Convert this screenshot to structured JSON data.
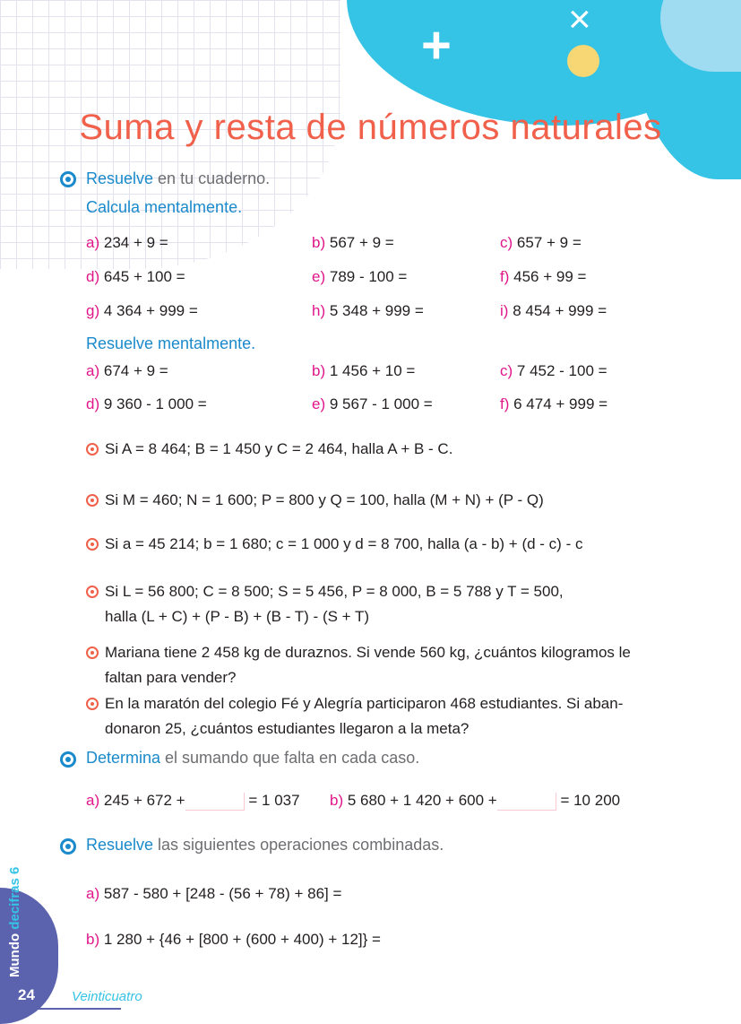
{
  "title": "Suma y resta de números naturales",
  "section1": {
    "verb": "Resuelve",
    "rest": " en tu cuaderno.",
    "calcula": {
      "heading": "Calcula mentalmente.",
      "items": [
        {
          "label": "a)",
          "expr": "234 + 9 ="
        },
        {
          "label": "b)",
          "expr": "567 + 9 ="
        },
        {
          "label": "c)",
          "expr": "657 + 9 ="
        },
        {
          "label": "d)",
          "expr": "645 + 100 ="
        },
        {
          "label": "e)",
          "expr": "789 - 100 ="
        },
        {
          "label": "f)",
          "expr": "456 + 99 ="
        },
        {
          "label": "g)",
          "expr": "4 364 + 999 ="
        },
        {
          "label": "h)",
          "expr": "5 348 + 999 ="
        },
        {
          "label": "i)",
          "expr": "8 454 + 999 ="
        }
      ]
    },
    "resuelve": {
      "heading": "Resuelve mentalmente.",
      "items": [
        {
          "label": "a)",
          "expr": "674 + 9 ="
        },
        {
          "label": "b)",
          "expr": "1 456 + 10 ="
        },
        {
          "label": "c)",
          "expr": "7 452 - 100 ="
        },
        {
          "label": "d)",
          "expr": "9 360 - 1 000 ="
        },
        {
          "label": "e)",
          "expr": "9 567 - 1 000 ="
        },
        {
          "label": "f)",
          "expr": "6 474 + 999 ="
        }
      ]
    },
    "problems": [
      {
        "lines": [
          "Si A = 8 464; B = 1 450 y C = 2 464, halla A + B - C."
        ]
      },
      {
        "lines": [
          "Si M = 460; N = 1 600; P = 800 y Q = 100, halla (M + N) + (P - Q)"
        ]
      },
      {
        "lines": [
          "Si a = 45 214; b = 1 680; c = 1 000 y d = 8 700, halla (a - b) + (d - c) - c"
        ]
      },
      {
        "lines": [
          "Si L = 56 800; C = 8 500; S = 5 456, P = 8 000, B = 5 788 y T = 500,",
          "halla (L + C) + (P - B) + (B - T) - (S + T)"
        ]
      },
      {
        "lines": [
          "Mariana tiene 2 458 kg de duraznos. Si vende 560 kg, ¿cuántos kilogramos le",
          "faltan para vender?"
        ]
      },
      {
        "lines": [
          "En la maratón del colegio Fé y Alegría participaron 468 estudiantes. Si aban-",
          "donaron 25, ¿cuántos estudiantes llegaron a la meta?"
        ]
      }
    ]
  },
  "section2": {
    "verb": "Determina",
    "rest": " el sumando que falta en cada caso.",
    "items": [
      {
        "label": "a)",
        "before": "245 + 672 +",
        "after": "= 1 037"
      },
      {
        "label": "b)",
        "before": "5 680 + 1 420 + 600 +",
        "after": "= 10 200"
      }
    ]
  },
  "section3": {
    "verb": "Resuelve",
    "rest": " las siguientes operaciones combinadas.",
    "items": [
      {
        "label": "a)",
        "expr": "587 - 580 + [248 - (56 + 78) + 86] ="
      },
      {
        "label": "b)",
        "expr": "1 280 + {46 + [800 + (600 + 400) + 12]} ="
      }
    ]
  },
  "footer": {
    "page_number": "24",
    "page_word": "Veinticuatro",
    "brand_1": "Mundo",
    "brand_2": "decifras",
    "brand_3": "6"
  },
  "colors": {
    "title": "#f0604a",
    "accent_blue": "#1a8acb",
    "label_pink": "#e0168a",
    "cyan": "#35c3e6",
    "footer_purple": "#5c63ae"
  }
}
